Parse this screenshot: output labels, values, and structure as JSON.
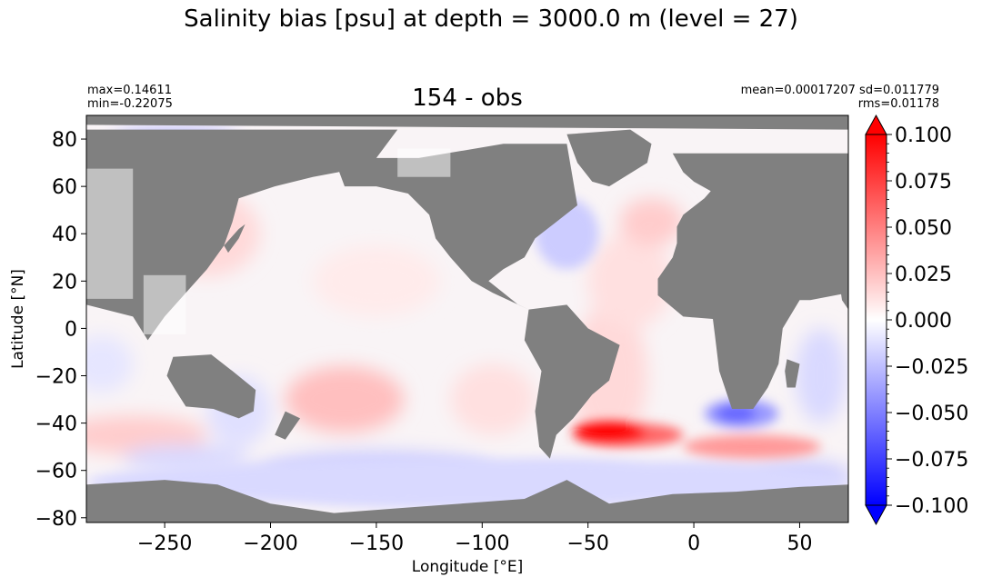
{
  "figure": {
    "suptitle": "Salinity bias [psu] at depth = 3000.0 m (level = 27)",
    "panel_title": "154 - obs",
    "stats_left": [
      "max=0.14611",
      "min=-0.22075"
    ],
    "stats_right": [
      "mean=0.00017207 sd=0.011779",
      "rms=0.01178"
    ]
  },
  "chart_data": {
    "type": "heatmap",
    "title": "154 - obs",
    "xlabel": "Longitude [°E]",
    "ylabel": "Latitude [°N]",
    "xlim": [
      -287,
      73
    ],
    "ylim": [
      -82,
      90
    ],
    "xticks": [
      -250,
      -200,
      -150,
      -100,
      -50,
      0,
      50
    ],
    "yticks": [
      -80,
      -60,
      -40,
      -20,
      0,
      20,
      40,
      60,
      80
    ],
    "land_color": "#808080",
    "colorbar": {
      "range": [
        -0.1,
        0.1
      ],
      "ticks": [
        "0.100",
        "0.075",
        "0.050",
        "0.025",
        "0.000",
        "−0.025",
        "−0.050",
        "−0.075",
        "−0.100"
      ],
      "extend": "both",
      "colormap": "bwr",
      "min_color": "#0000ff",
      "mid_color": "#ffffff",
      "max_color": "#ff0000"
    },
    "features": [
      {
        "name": "Southern Atlantic positive bias",
        "lon_range": [
          -57,
          -5
        ],
        "lat_range": [
          -50,
          -40
        ],
        "value": 0.06
      },
      {
        "name": "Indian Ocean south positive bias",
        "lon_range": [
          -5,
          60
        ],
        "lat_range": [
          -55,
          -45
        ],
        "value": 0.04
      },
      {
        "name": "South-west Indian negative bias",
        "lon_range": [
          5,
          40
        ],
        "lat_range": [
          -42,
          -30
        ],
        "value": -0.04
      },
      {
        "name": "North Atlantic negative bias",
        "lon_range": [
          -75,
          -45
        ],
        "lat_range": [
          25,
          55
        ],
        "value": -0.02
      },
      {
        "name": "Southern Ocean negative bias",
        "lon_range": [
          -287,
          73
        ],
        "lat_range": [
          -75,
          -55
        ],
        "value": -0.015
      }
    ]
  }
}
